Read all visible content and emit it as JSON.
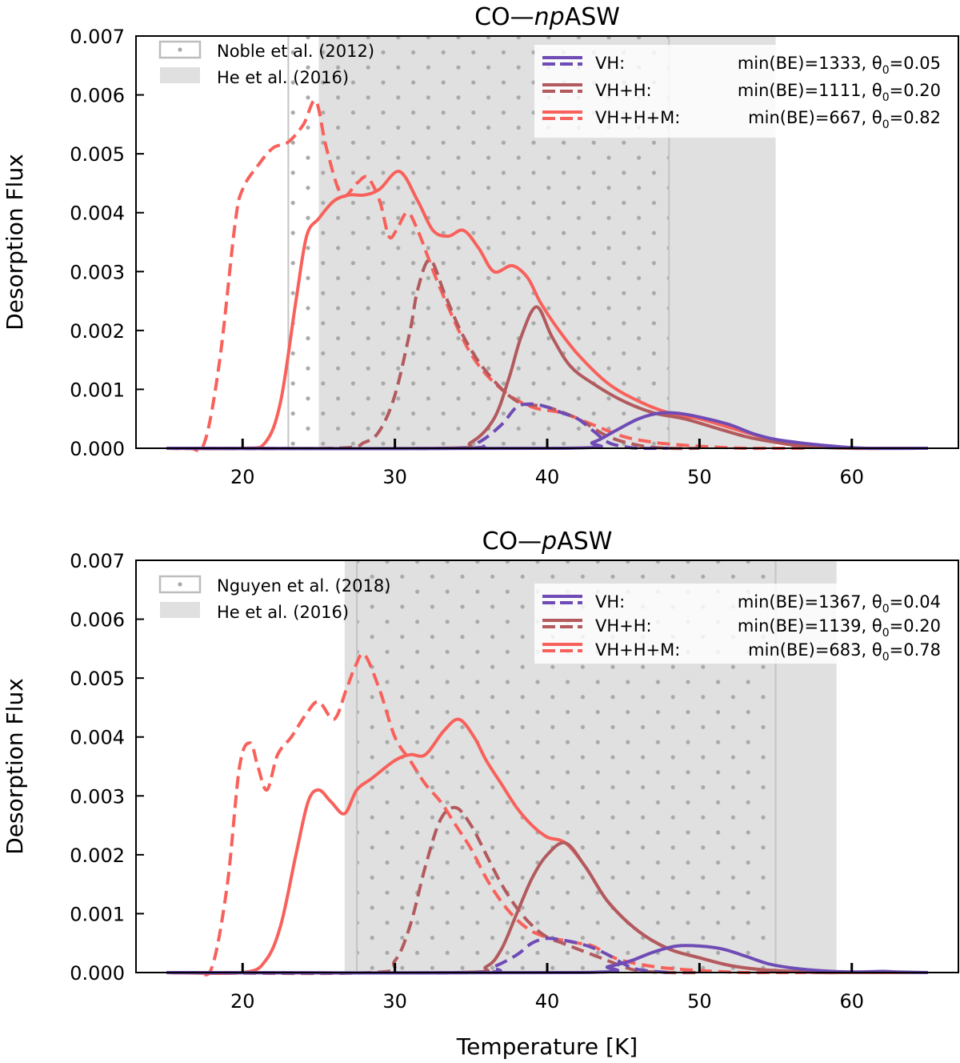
{
  "figure": {
    "xlabel": "Temperature [K]"
  },
  "chart_data": [
    {
      "type": "line",
      "title_prefix": "CO—",
      "title_italic": "np",
      "title_suffix": "ASW",
      "title": "CO—npASW",
      "xlabel": "Temperature [K]",
      "ylabel": "Desorption Flux",
      "xlim": [
        13,
        67
      ],
      "ylim": [
        0,
        0.007
      ],
      "xticks": [
        20,
        30,
        40,
        50,
        60
      ],
      "xtick_labels": [
        "20",
        "30",
        "40",
        "50",
        "60"
      ],
      "yticks": [
        0,
        0.001,
        0.002,
        0.003,
        0.004,
        0.005,
        0.006,
        0.007
      ],
      "ytick_labels": [
        "0.000",
        "0.001",
        "0.002",
        "0.003",
        "0.004",
        "0.005",
        "0.006",
        "0.007"
      ],
      "regions": [
        {
          "name": "Noble et al. (2012)",
          "kind": "dotted",
          "x": [
            23,
            48
          ]
        },
        {
          "name": "He et al. (2016)",
          "kind": "shaded",
          "x": [
            25,
            55
          ]
        }
      ],
      "series": [
        {
          "name": "VH+H+M",
          "style": "dashed",
          "color": "#f8615b",
          "x": [
            15,
            16.5,
            17.5,
            18.5,
            19.5,
            20,
            21,
            22,
            23,
            24,
            24.8,
            25.5,
            26.5,
            27.5,
            28.2,
            29,
            29.6,
            30.1,
            30.8,
            31.5,
            33,
            35,
            37,
            39,
            41,
            43,
            45,
            47,
            49,
            51,
            53,
            55,
            57
          ],
          "y": [
            0,
            0,
            0.0001,
            0.0015,
            0.0038,
            0.0044,
            0.0048,
            0.0051,
            0.0052,
            0.0055,
            0.0059,
            0.0051,
            0.0043,
            0.0045,
            0.0046,
            0.0042,
            0.0036,
            0.0037,
            0.004,
            0.0037,
            0.0027,
            0.0016,
            0.001,
            0.0007,
            0.0006,
            0.0004,
            0.0002,
            0.0001,
            5e-05,
            2e-05,
            0,
            0,
            0
          ]
        },
        {
          "name": "VH+H+M",
          "style": "solid",
          "color": "#f8615b",
          "x": [
            15,
            20,
            21.5,
            22.5,
            23.5,
            24.2,
            25,
            26,
            27,
            28,
            29,
            30.3,
            31.5,
            32.5,
            33.5,
            34.5,
            35.5,
            36.5,
            37.7,
            38.7,
            39.5,
            40.5,
            42,
            44,
            46,
            48,
            50,
            52,
            54,
            56,
            58,
            60,
            62,
            65
          ],
          "y": [
            0,
            0,
            0.0001,
            0.0008,
            0.0025,
            0.0036,
            0.0039,
            0.0042,
            0.0043,
            0.0043,
            0.0044,
            0.0047,
            0.0042,
            0.0037,
            0.0036,
            0.0037,
            0.0034,
            0.003,
            0.0031,
            0.0029,
            0.0025,
            0.0021,
            0.0016,
            0.0011,
            0.0008,
            0.0006,
            0.0005,
            0.00035,
            0.0002,
            0.0001,
            3e-05,
            0,
            0,
            0
          ]
        },
        {
          "name": "VH+H",
          "style": "dashed",
          "color": "#b25a5e",
          "x": [
            15,
            26,
            28,
            29,
            30,
            31,
            31.5,
            32.3,
            33.3,
            34.5,
            36,
            38,
            40,
            42,
            44,
            46,
            48,
            50
          ],
          "y": [
            0,
            0,
            0.0001,
            0.0003,
            0.0009,
            0.002,
            0.0027,
            0.0032,
            0.0026,
            0.0019,
            0.0013,
            0.0008,
            0.0007,
            0.0005,
            0.0002,
            5e-05,
            0,
            0
          ]
        },
        {
          "name": "VH+H",
          "style": "solid",
          "color": "#b25a5e",
          "x": [
            15,
            33,
            35,
            36.5,
            37.5,
            38.3,
            39.3,
            40.3,
            41.5,
            43,
            45,
            47,
            49,
            51,
            53,
            55,
            57,
            60,
            65
          ],
          "y": [
            0,
            0,
            0.0001,
            0.0005,
            0.0012,
            0.0019,
            0.0024,
            0.0019,
            0.0014,
            0.0011,
            0.0008,
            0.0006,
            0.0005,
            0.00035,
            0.0002,
            0.0001,
            3e-05,
            0,
            0
          ]
        },
        {
          "name": "VH",
          "style": "dashed",
          "color": "#6e4bb5",
          "x": [
            15,
            34,
            35.5,
            37,
            38,
            39,
            40,
            41,
            42,
            43,
            44,
            45,
            46,
            48
          ],
          "y": [
            0,
            0,
            0.0001,
            0.0004,
            0.0007,
            0.00075,
            0.0007,
            0.0006,
            0.0005,
            0.0003,
            0.0001,
            3e-05,
            0,
            0
          ]
        },
        {
          "name": "VH",
          "style": "solid",
          "color": "#6e4bb5",
          "x": [
            15,
            41,
            43,
            44.5,
            46,
            47.5,
            49,
            50.5,
            52,
            53.5,
            55,
            57,
            59,
            61,
            65
          ],
          "y": [
            0,
            0,
            0.0001,
            0.0003,
            0.0005,
            0.0006,
            0.00058,
            0.0005,
            0.0004,
            0.00025,
            0.00015,
            8e-05,
            3e-05,
            0,
            0
          ]
        }
      ],
      "legend_regions": [
        "Noble et al. (2012)",
        "He et al. (2016)"
      ],
      "legend_series": [
        {
          "label": "VH:",
          "info": "min(BE)=1333, θ",
          "sub": "0",
          "value": "=0.05",
          "color": "#6e4bb5"
        },
        {
          "label": "VH+H:",
          "info": "min(BE)=1111, θ",
          "sub": "0",
          "value": "=0.20",
          "color": "#b25a5e"
        },
        {
          "label": "VH+H+M:",
          "info": "min(BE)=667,   θ",
          "sub": "0",
          "value": "=0.82",
          "color": "#f8615b"
        }
      ]
    },
    {
      "type": "line",
      "title_prefix": "CO—",
      "title_italic": "p",
      "title_suffix": "ASW",
      "title": "CO—pASW",
      "xlabel": "Temperature [K]",
      "ylabel": "Desorption Flux",
      "xlim": [
        13,
        67
      ],
      "ylim": [
        0,
        0.007
      ],
      "xticks": [
        20,
        30,
        40,
        50,
        60
      ],
      "xtick_labels": [
        "20",
        "30",
        "40",
        "50",
        "60"
      ],
      "yticks": [
        0,
        0.001,
        0.002,
        0.003,
        0.004,
        0.005,
        0.006,
        0.007
      ],
      "ytick_labels": [
        "0.000",
        "0.001",
        "0.002",
        "0.003",
        "0.004",
        "0.005",
        "0.006",
        "0.007"
      ],
      "regions": [
        {
          "name": "Nguyen et al. (2018)",
          "kind": "dotted",
          "x": [
            27.5,
            55
          ]
        },
        {
          "name": "He et al. (2016)",
          "kind": "shaded",
          "x": [
            26.7,
            59
          ]
        }
      ],
      "series": [
        {
          "name": "VH+H+M",
          "style": "dashed",
          "color": "#f8615b",
          "x": [
            15,
            17,
            18,
            19,
            19.8,
            20.5,
            21,
            21.6,
            22.3,
            23.2,
            24.2,
            25,
            26,
            26.8,
            27.4,
            28,
            29,
            30,
            31,
            32,
            33,
            34,
            35,
            36,
            37,
            38,
            39,
            40,
            41,
            42,
            43,
            44,
            45,
            47,
            49,
            51,
            53,
            55,
            57
          ],
          "y": [
            0,
            0,
            0.0001,
            0.0015,
            0.0035,
            0.0039,
            0.0035,
            0.0031,
            0.0037,
            0.004,
            0.0044,
            0.0046,
            0.0043,
            0.0048,
            0.0052,
            0.0054,
            0.0048,
            0.004,
            0.0036,
            0.0032,
            0.0029,
            0.0025,
            0.0021,
            0.0016,
            0.0012,
            0.0009,
            0.0007,
            0.0006,
            0.00055,
            0.0005,
            0.00045,
            0.0003,
            0.0002,
            0.0001,
            5e-05,
            2e-05,
            0,
            0,
            0
          ]
        },
        {
          "name": "VH+H+M",
          "style": "solid",
          "color": "#f8615b",
          "x": [
            15,
            20,
            21.5,
            22.5,
            23.5,
            24.3,
            25,
            25.8,
            26.7,
            27.5,
            28.5,
            30,
            31,
            32,
            33.2,
            34.2,
            35.2,
            36,
            37,
            38,
            39,
            40,
            41.2,
            42.5,
            44,
            46,
            48,
            50,
            52,
            54,
            56,
            58,
            60,
            62,
            65
          ],
          "y": [
            0,
            0,
            0.0002,
            0.0008,
            0.002,
            0.0029,
            0.0031,
            0.0029,
            0.0027,
            0.0031,
            0.0033,
            0.0036,
            0.0037,
            0.0037,
            0.0041,
            0.0043,
            0.004,
            0.0036,
            0.0032,
            0.0028,
            0.0025,
            0.0023,
            0.0022,
            0.0018,
            0.0012,
            0.0007,
            0.0004,
            0.00025,
            0.00012,
            5e-05,
            2e-05,
            0,
            0,
            0,
            0
          ]
        },
        {
          "name": "VH+H",
          "style": "dashed",
          "color": "#b25a5e",
          "x": [
            15,
            28.5,
            30,
            31,
            32,
            33,
            34,
            35,
            36,
            37,
            38,
            39,
            40,
            41,
            42,
            43,
            44,
            45,
            46,
            48,
            50
          ],
          "y": [
            0,
            0,
            0.0002,
            0.0008,
            0.0018,
            0.0026,
            0.0028,
            0.0025,
            0.002,
            0.0015,
            0.0011,
            0.0008,
            0.0006,
            0.0005,
            0.0004,
            0.0003,
            0.0002,
            0.0001,
            3e-05,
            0,
            0
          ]
        },
        {
          "name": "VH+H",
          "style": "solid",
          "color": "#b25a5e",
          "x": [
            15,
            34,
            36,
            37,
            38,
            39,
            40,
            41.2,
            42.5,
            44,
            46,
            48,
            50,
            52,
            54,
            56,
            58,
            60,
            65
          ],
          "y": [
            0,
            0,
            0.0001,
            0.0004,
            0.001,
            0.0016,
            0.002,
            0.0022,
            0.0018,
            0.0012,
            0.0007,
            0.0004,
            0.00025,
            0.00012,
            5e-05,
            2e-05,
            0,
            0,
            0
          ]
        },
        {
          "name": "VH",
          "style": "dashed",
          "color": "#6e4bb5",
          "x": [
            15,
            35,
            36.5,
            38,
            39,
            40,
            41,
            42,
            43,
            44,
            45,
            46,
            48
          ],
          "y": [
            0,
            0,
            0.0001,
            0.0003,
            0.0005,
            0.00058,
            0.00055,
            0.0005,
            0.00042,
            0.0003,
            0.00015,
            5e-05,
            0
          ]
        },
        {
          "name": "VH",
          "style": "solid",
          "color": "#6e4bb5",
          "x": [
            15,
            42,
            44,
            45.5,
            47,
            48.5,
            50,
            51.5,
            53,
            54.5,
            56,
            58,
            60,
            62,
            63,
            65
          ],
          "y": [
            0,
            0,
            0.0001,
            0.0002,
            0.00035,
            0.00045,
            0.00045,
            0.0004,
            0.00028,
            0.00015,
            8e-05,
            3e-05,
            1e-05,
            2e-05,
            1e-05,
            0
          ]
        }
      ],
      "legend_regions": [
        "Nguyen et al. (2018)",
        "He et al. (2016)"
      ],
      "legend_series": [
        {
          "label": "VH:",
          "info": "min(BE)=1367, θ",
          "sub": "0",
          "value": "=0.04",
          "color": "#6e4bb5"
        },
        {
          "label": "VH+H:",
          "info": "min(BE)=1139, θ",
          "sub": "0",
          "value": "=0.20",
          "color": "#b25a5e"
        },
        {
          "label": "VH+H+M:",
          "info": "min(BE)=683,   θ",
          "sub": "0",
          "value": "=0.78",
          "color": "#f8615b"
        }
      ]
    }
  ]
}
